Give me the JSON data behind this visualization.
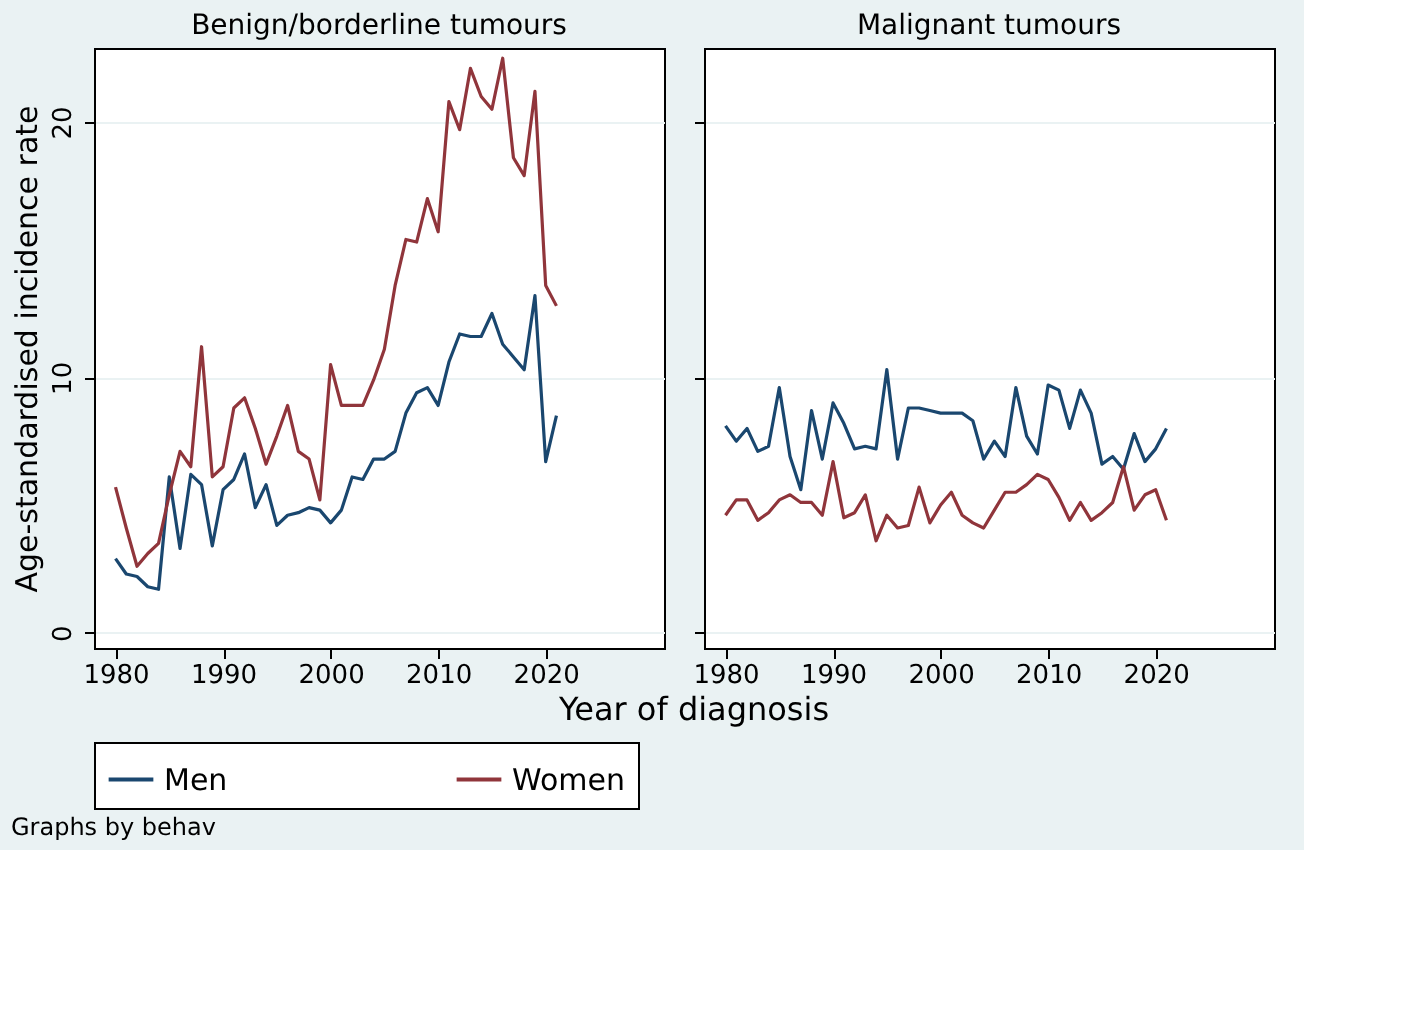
{
  "chart_data": [
    {
      "type": "line",
      "title": "Benign/borderline tumours",
      "ylabel": "Age-standardised incidence rate",
      "xlabel": "Year of diagnosis",
      "x": [
        1980,
        1981,
        1982,
        1983,
        1984,
        1985,
        1986,
        1987,
        1988,
        1989,
        1990,
        1991,
        1992,
        1993,
        1994,
        1995,
        1996,
        1997,
        1998,
        1999,
        2000,
        2001,
        2002,
        2003,
        2004,
        2005,
        2006,
        2007,
        2008,
        2009,
        2010,
        2011,
        2012,
        2013,
        2014,
        2015,
        2016,
        2017,
        2018,
        2019,
        2020,
        2021
      ],
      "series": [
        {
          "name": "Men",
          "color": "#1a476f",
          "values": [
            2.9,
            2.3,
            2.2,
            1.8,
            1.7,
            6.1,
            3.3,
            6.2,
            5.8,
            3.4,
            5.6,
            6.0,
            7.0,
            4.9,
            5.8,
            4.2,
            4.6,
            4.7,
            4.9,
            4.8,
            4.3,
            4.8,
            6.1,
            6.0,
            6.8,
            6.8,
            7.1,
            8.6,
            9.4,
            9.6,
            8.9,
            10.6,
            11.7,
            11.6,
            11.6,
            12.5,
            11.3,
            10.8,
            10.3,
            13.2,
            6.7,
            8.5
          ]
        },
        {
          "name": "Women",
          "color": "#90353b",
          "values": [
            5.7,
            4.1,
            2.6,
            3.1,
            3.5,
            5.4,
            7.1,
            6.5,
            11.2,
            6.1,
            6.5,
            8.8,
            9.2,
            8.0,
            6.6,
            7.7,
            8.9,
            7.1,
            6.8,
            5.2,
            10.5,
            8.9,
            8.9,
            8.9,
            9.9,
            11.1,
            13.6,
            15.4,
            15.3,
            17.0,
            15.7,
            20.8,
            19.7,
            22.1,
            21.0,
            20.5,
            22.5,
            18.6,
            17.9,
            21.2,
            13.6,
            12.8
          ]
        }
      ],
      "xlim": [
        1978,
        2031
      ],
      "xticks": [
        1980,
        1990,
        2000,
        2010,
        2020
      ],
      "ylim": [
        -0.6,
        22.9
      ],
      "yticks": [
        0,
        10,
        20
      ],
      "grid": "y",
      "legend": "bottom",
      "line_style": "solid",
      "annotations": [
        "Graphs by behav"
      ]
    },
    {
      "type": "line",
      "title": "Malignant tumours",
      "x": [
        1980,
        1981,
        1982,
        1983,
        1984,
        1985,
        1986,
        1987,
        1988,
        1989,
        1990,
        1991,
        1992,
        1993,
        1994,
        1995,
        1996,
        1997,
        1998,
        1999,
        2000,
        2001,
        2002,
        2003,
        2004,
        2005,
        2006,
        2007,
        2008,
        2009,
        2010,
        2011,
        2012,
        2013,
        2014,
        2015,
        2016,
        2017,
        2018,
        2019,
        2020,
        2021
      ],
      "series": [
        {
          "name": "Men",
          "color": "#1a476f",
          "values": [
            8.1,
            7.5,
            8.0,
            7.1,
            7.3,
            9.6,
            6.9,
            5.6,
            8.7,
            6.8,
            9.0,
            8.2,
            7.2,
            7.3,
            7.2,
            10.3,
            6.8,
            8.8,
            8.8,
            8.7,
            8.6,
            8.6,
            8.6,
            8.3,
            6.8,
            7.5,
            6.9,
            9.6,
            7.7,
            7.0,
            9.7,
            9.5,
            8.0,
            9.5,
            8.6,
            6.6,
            6.9,
            6.4,
            7.8,
            6.7,
            7.2,
            8.0
          ]
        },
        {
          "name": "Women",
          "color": "#90353b",
          "values": [
            4.6,
            5.2,
            5.2,
            4.4,
            4.7,
            5.2,
            5.4,
            5.1,
            5.1,
            4.6,
            6.7,
            4.5,
            4.7,
            5.4,
            3.6,
            4.6,
            4.1,
            4.2,
            5.7,
            4.3,
            5.0,
            5.5,
            4.6,
            4.3,
            4.1,
            4.8,
            5.5,
            5.5,
            5.8,
            6.2,
            6.0,
            5.3,
            4.4,
            5.1,
            4.4,
            4.7,
            5.1,
            6.5,
            4.8,
            5.4,
            5.6,
            4.4
          ]
        }
      ],
      "xlim": [
        1978,
        2031
      ],
      "xticks": [
        1980,
        1990,
        2000,
        2010,
        2020
      ],
      "ylim": [
        -0.6,
        22.9
      ],
      "yticks": [
        0,
        10,
        20
      ],
      "grid": "y",
      "legend": "bottom",
      "line_style": "solid",
      "tick_labels": "x"
    }
  ]
}
